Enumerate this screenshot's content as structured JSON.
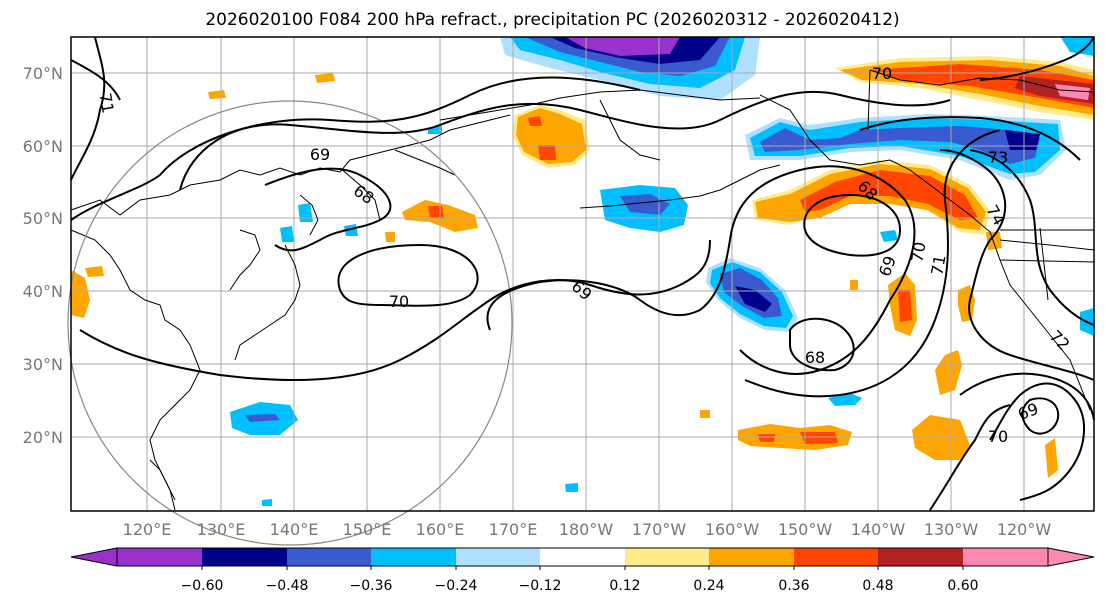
{
  "title": "2026020100 F084 200 hPa refract., precipitation PC (2026020312 - 2026020412)",
  "lat_labels": [
    "70°N",
    "60°N",
    "50°N",
    "40°N",
    "30°N",
    "20°N"
  ],
  "lon_labels": [
    "120°E",
    "130°E",
    "140°E",
    "150°E",
    "160°E",
    "170°E",
    "180°W",
    "170°W",
    "160°W",
    "150°W",
    "140°W",
    "130°W",
    "120°W"
  ],
  "colorbar": {
    "colors": [
      "#9932cc",
      "#00008b",
      "#3a5bd0",
      "#00bfff",
      "#b0e0ff",
      "#ffffff",
      "#ffeb8a",
      "#ffa500",
      "#ff4500",
      "#b22222",
      "#ff88b0"
    ],
    "labels": [
      "−0.60",
      "−0.48",
      "−0.36",
      "−0.24",
      "−0.12",
      "0.12",
      "0.24",
      "0.36",
      "0.48",
      "0.60"
    ]
  },
  "contour_labels": [
    {
      "text": "71"
    },
    {
      "text": "69"
    },
    {
      "text": "68"
    },
    {
      "text": "70"
    },
    {
      "text": "69"
    },
    {
      "text": "70"
    },
    {
      "text": "68"
    },
    {
      "text": "73"
    },
    {
      "text": "68"
    },
    {
      "text": "69"
    },
    {
      "text": "70"
    },
    {
      "text": "71"
    },
    {
      "text": "72"
    },
    {
      "text": "74"
    },
    {
      "text": "69"
    },
    {
      "text": "70"
    }
  ]
}
